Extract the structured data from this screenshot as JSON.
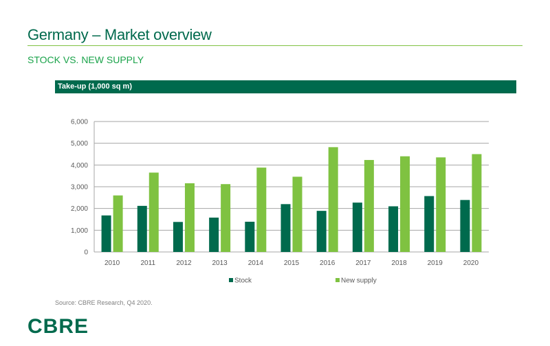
{
  "header": {
    "title": "Germany – Market overview",
    "subtitle": "STOCK VS. NEW SUPPLY",
    "chart_header": "Take-up (1,000 sq m)"
  },
  "footer": {
    "source": "Source: CBRE Research, Q4 2020.",
    "logo": "CBRE"
  },
  "colors": {
    "brand_dark_green": "#006a4d",
    "accent_green": "#7fc241",
    "subtitle_green": "#1aa34a"
  },
  "chart_data": {
    "type": "bar",
    "title": "Take-up (1,000 sq m)",
    "categories": [
      "2010",
      "2011",
      "2012",
      "2013",
      "2014",
      "2015",
      "2016",
      "2017",
      "2018",
      "2019",
      "2020"
    ],
    "series": [
      {
        "name": "Stock",
        "color": "#006a4d",
        "values": [
          1680,
          2120,
          1380,
          1580,
          1390,
          2200,
          1890,
          2270,
          2100,
          2570,
          2390
        ]
      },
      {
        "name": "New supply",
        "color": "#7fc241",
        "values": [
          2600,
          3650,
          3160,
          3120,
          3880,
          3460,
          4820,
          4230,
          4400,
          4350,
          4500
        ]
      }
    ],
    "yticks": [
      "0",
      "1,000",
      "2,000",
      "3,000",
      "4,000",
      "5,000",
      "6,000"
    ],
    "ylim": [
      0,
      6000
    ],
    "xlabel": "",
    "ylabel": "",
    "grid": true,
    "legend": "bottom-center"
  }
}
